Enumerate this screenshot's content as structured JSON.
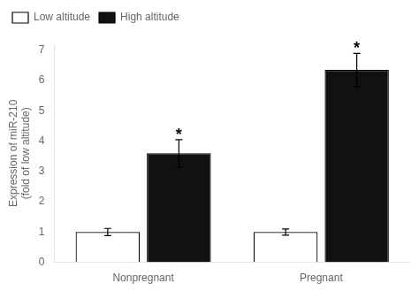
{
  "chart_data": {
    "type": "bar",
    "categories": [
      "Nonpregnant",
      "Pregnant"
    ],
    "series": [
      {
        "name": "Low altitude",
        "color": "#ffffff",
        "values": [
          1.0,
          1.0
        ],
        "errors": [
          0.12,
          0.1
        ]
      },
      {
        "name": "High altitude",
        "color": "#111111",
        "values": [
          3.6,
          6.35
        ],
        "errors": [
          0.45,
          0.55
        ]
      }
    ],
    "ylabel": "Expression of miR-210\n(fold of low altitude)",
    "ylim": [
      0,
      7.2
    ],
    "yticks": [
      0,
      1,
      2,
      3,
      4,
      5,
      6,
      7
    ],
    "grid": false,
    "legend": "upper left",
    "annotations": [
      {
        "text": "*",
        "category": "Nonpregnant",
        "series": "High altitude"
      },
      {
        "text": "*",
        "category": "Pregnant",
        "series": "High altitude"
      }
    ]
  }
}
